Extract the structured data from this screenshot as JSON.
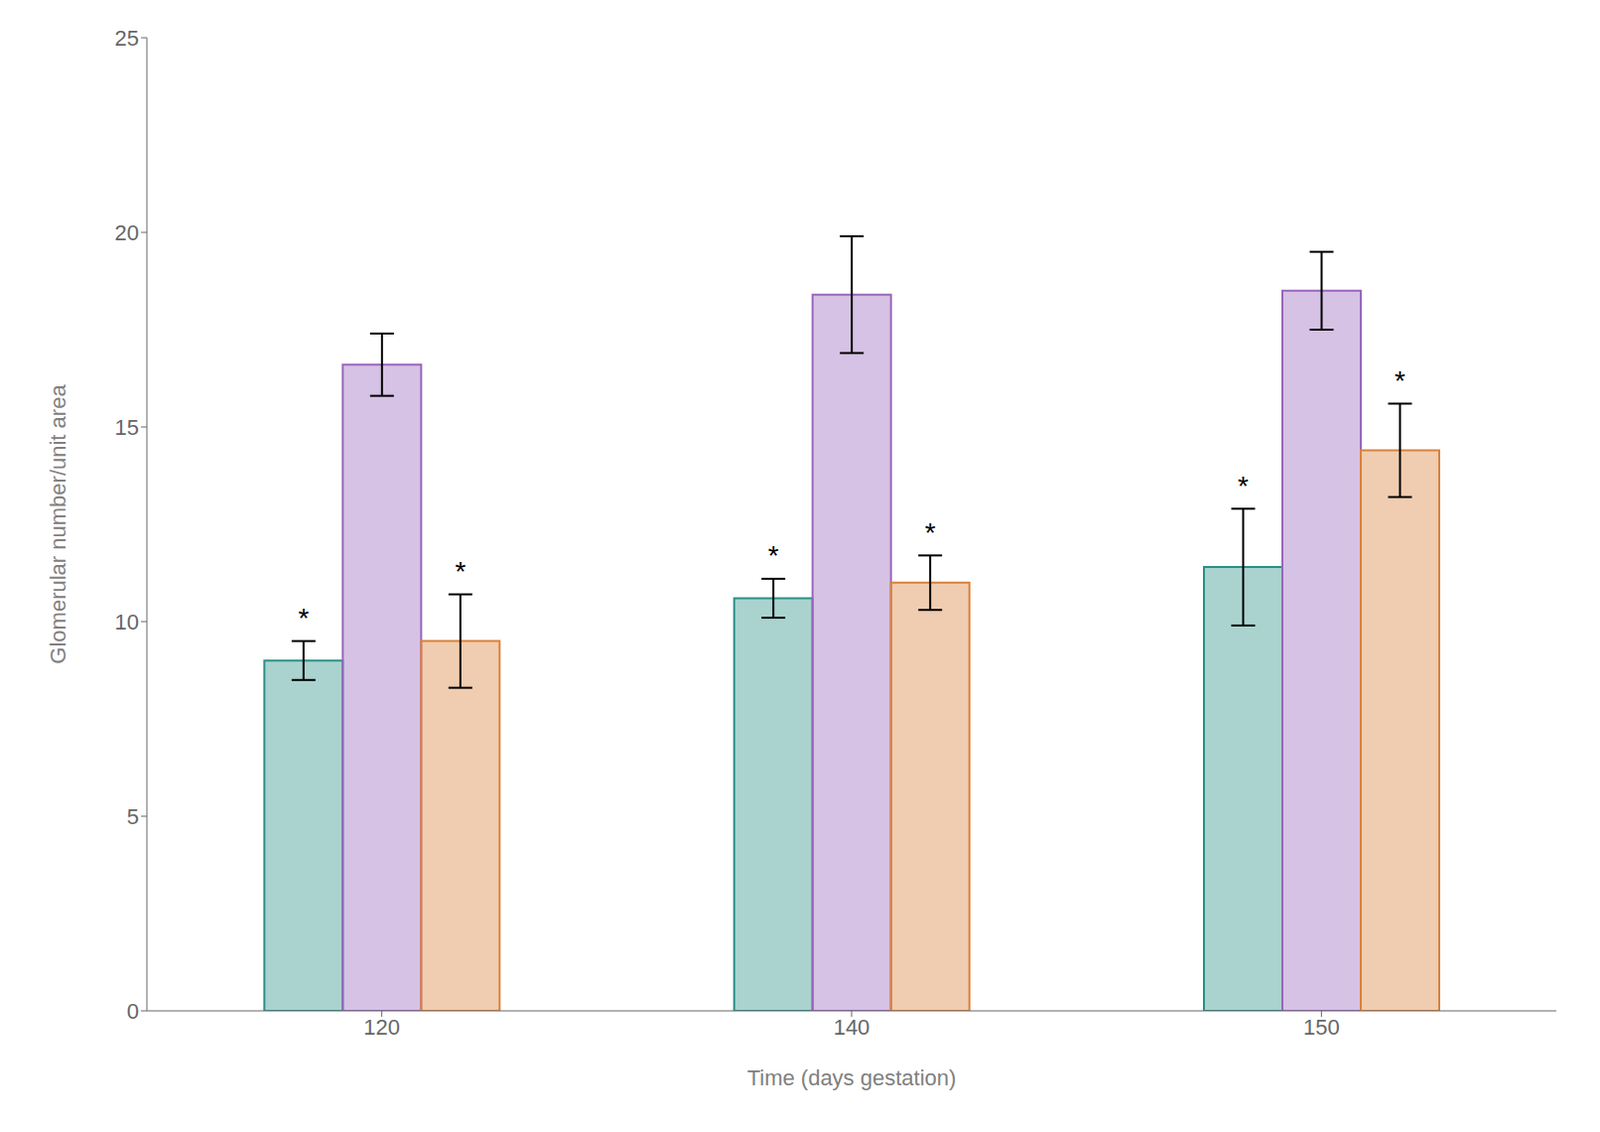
{
  "chart_data": {
    "type": "bar",
    "categories": [
      "120",
      "140",
      "150"
    ],
    "xlabel": "Time (days gestation)",
    "ylabel": "Glomerular number/unit area",
    "ylim": [
      0,
      25
    ],
    "yticks": [
      0,
      5,
      10,
      15,
      20,
      25
    ],
    "grid": false,
    "annotation": "*",
    "series": [
      {
        "color": "#2a9087",
        "values": [
          9.0,
          10.6,
          11.4
        ],
        "errors": [
          0.5,
          0.5,
          1.5
        ],
        "significant": [
          true,
          true,
          true
        ]
      },
      {
        "color": "#9966bb",
        "values": [
          16.6,
          18.4,
          18.5
        ],
        "errors": [
          0.8,
          1.5,
          1.0
        ],
        "significant": [
          false,
          false,
          false
        ]
      },
      {
        "color": "#d9813a",
        "values": [
          9.5,
          11.0,
          14.4
        ],
        "errors": [
          1.2,
          0.7,
          1.2
        ],
        "significant": [
          true,
          true,
          true
        ]
      }
    ]
  }
}
